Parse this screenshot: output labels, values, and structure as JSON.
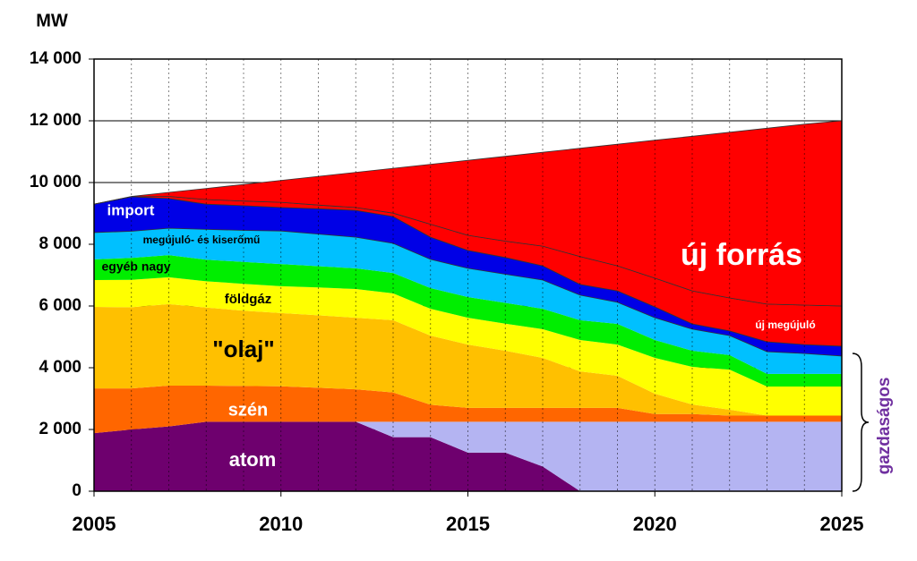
{
  "chart_data": {
    "type": "stacked-area",
    "y_label": "MW",
    "annotation": "gazdaságos",
    "x": [
      2005,
      2006,
      2007,
      2008,
      2009,
      2010,
      2011,
      2012,
      2013,
      2014,
      2015,
      2016,
      2017,
      2018,
      2019,
      2020,
      2021,
      2022,
      2023,
      2024,
      2025
    ],
    "xlim": [
      2005,
      2025
    ],
    "xticks": [
      2005,
      2010,
      2015,
      2020,
      2025
    ],
    "ylim": [
      0,
      14000
    ],
    "yticks": [
      {
        "value": 0,
        "label": "0"
      },
      {
        "value": 2000,
        "label": "2 000"
      },
      {
        "value": 4000,
        "label": "4 000"
      },
      {
        "value": 6000,
        "label": "6 000"
      },
      {
        "value": 8000,
        "label": "8 000"
      },
      {
        "value": 10000,
        "label": "10 000"
      },
      {
        "value": 12000,
        "label": "12 000"
      },
      {
        "value": 14000,
        "label": "14 000"
      }
    ],
    "grid": true,
    "series": [
      {
        "name": "atom",
        "color": "#6e006e",
        "values": [
          1880,
          2000,
          2100,
          2250,
          2250,
          2250,
          2250,
          2250,
          1750,
          1750,
          1250,
          1250,
          800,
          0,
          0,
          0,
          0,
          0,
          0,
          0,
          0
        ]
      },
      {
        "color": "#b4b4f2",
        "values": [
          0,
          0,
          0,
          0,
          0,
          0,
          0,
          0,
          500,
          500,
          1000,
          1000,
          1450,
          2250,
          2250,
          2250,
          2250,
          2250,
          2250,
          2250,
          2250
        ]
      },
      {
        "name": "szén",
        "color": "#ff6600",
        "values": [
          1450,
          1330,
          1320,
          1170,
          1160,
          1150,
          1100,
          1050,
          950,
          550,
          450,
          450,
          450,
          450,
          450,
          250,
          250,
          200,
          200,
          200,
          200
        ]
      },
      {
        "name": "\"olaj\"",
        "color": "#ffc000",
        "values": [
          2640,
          2630,
          2640,
          2530,
          2440,
          2370,
          2350,
          2320,
          2340,
          2240,
          2050,
          1850,
          1620,
          1180,
          1040,
          660,
          310,
          190,
          0,
          0,
          0
        ]
      },
      {
        "name": "földgáz",
        "color": "#ffff00",
        "values": [
          870,
          890,
          870,
          850,
          870,
          870,
          900,
          930,
          870,
          870,
          870,
          880,
          930,
          1020,
          1010,
          1160,
          1220,
          1300,
          940,
          940,
          940
        ]
      },
      {
        "name": "egyéb nagy",
        "color": "#00ee00",
        "values": [
          670,
          710,
          720,
          700,
          710,
          720,
          690,
          670,
          660,
          670,
          670,
          670,
          660,
          640,
          670,
          580,
          520,
          470,
          410,
          410,
          410
        ]
      },
      {
        "name": "megújuló- és kiserőmű",
        "color": "#00c0ff",
        "values": [
          870,
          860,
          870,
          980,
          1020,
          1070,
          1040,
          1010,
          960,
          930,
          930,
          930,
          930,
          810,
          700,
          720,
          700,
          630,
          720,
          660,
          580
        ]
      },
      {
        "name": "import",
        "color": "#0000e6",
        "values": [
          920,
          1120,
          960,
          820,
          800,
          760,
          820,
          870,
          870,
          720,
          580,
          540,
          460,
          350,
          370,
          350,
          170,
          150,
          320,
          290,
          320
        ]
      },
      {
        "name": "új megújuló",
        "color": "#ff0000",
        "values": [
          0,
          0,
          70,
          150,
          150,
          170,
          120,
          90,
          110,
          420,
          490,
          530,
          640,
          900,
          810,
          930,
          1070,
          1070,
          1220,
          1280,
          1300
        ]
      },
      {
        "name": "új forrás",
        "color": "#ff0000",
        "values": [
          0,
          10,
          130,
          360,
          540,
          710,
          930,
          1140,
          1450,
          1940,
          2430,
          2750,
          3040,
          3510,
          3940,
          4470,
          5010,
          5370,
          5700,
          5860,
          6000
        ]
      }
    ]
  }
}
